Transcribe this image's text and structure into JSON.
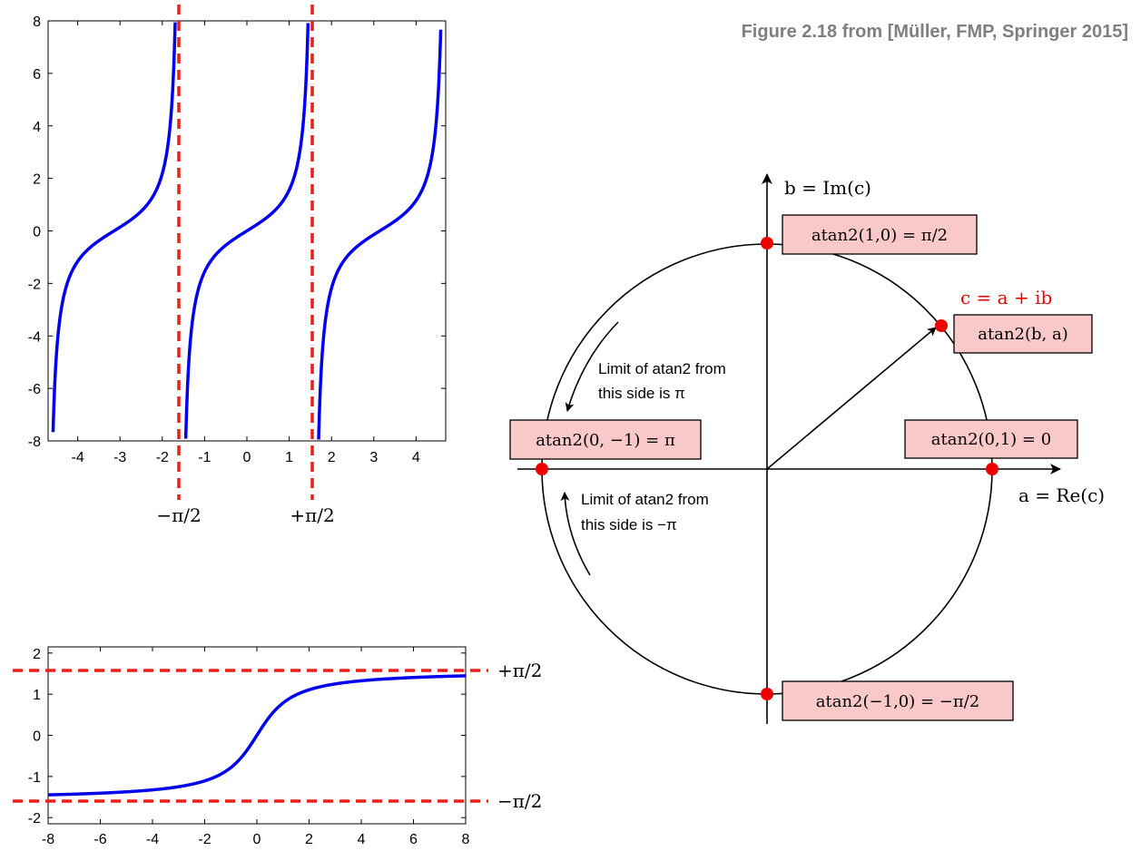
{
  "figure_credit": "Figure 2.18 from [Müller, FMP, Springer 2015]",
  "colors": {
    "curve": "#0000ee",
    "asymptote": "#e8201a",
    "box_fill": "#f9c8c8",
    "point": "#ee0000"
  },
  "tan_plot": {
    "xticks": [
      "-4",
      "-3",
      "-2",
      "-1",
      "0",
      "1",
      "2",
      "3",
      "4"
    ],
    "yticks": [
      "8",
      "6",
      "4",
      "2",
      "0",
      "-2",
      "-4",
      "-6",
      "-8"
    ],
    "asymptote_labels": [
      "−π/2",
      "+π/2"
    ]
  },
  "atan_plot": {
    "xticks": [
      "-8",
      "-6",
      "-4",
      "-2",
      "0",
      "2",
      "4",
      "6",
      "8"
    ],
    "yticks": [
      "2",
      "1",
      "0",
      "-1",
      "-2"
    ],
    "asymptote_labels": [
      "+π/2",
      "−π/2"
    ]
  },
  "circle_diagram": {
    "axis_im": "b = Im(c)",
    "axis_re": "a = Re(c)",
    "c_label": "c = a + ib",
    "box_top": "atan2(1,0) = π/2",
    "box_c": "atan2(b, a)",
    "box_left": "atan2(0, −1) = π",
    "box_right": "atan2(0,1) = 0",
    "box_bottom": "atan2(−1,0) = −π/2",
    "note_upper": [
      "Limit of atan2 from",
      "this side is π"
    ],
    "note_lower": [
      "Limit of atan2 from",
      "this side is −π"
    ]
  },
  "chart_data": [
    {
      "type": "line",
      "series": [
        {
          "function": "tan(x)",
          "values_sample": [
            [
              -4.5,
              -4.64
            ],
            [
              -3.14,
              0
            ],
            [
              -2,
              2.19
            ],
            [
              -1,
              -1.56
            ],
            [
              0,
              0
            ],
            [
              1,
              1.56
            ],
            [
              2,
              -2.19
            ],
            [
              3.14,
              0
            ],
            [
              4.5,
              4.64
            ]
          ]
        }
      ],
      "xlim": [
        -4.7,
        4.7
      ],
      "ylim": [
        -8,
        8
      ],
      "asymptotes_x": [
        "-π/2",
        "+π/2"
      ]
    },
    {
      "type": "line",
      "series": [
        {
          "function": "atan(x)",
          "values_sample": [
            [
              -8,
              -1.446
            ],
            [
              -4,
              -1.326
            ],
            [
              -2,
              -1.107
            ],
            [
              -1,
              -0.785
            ],
            [
              0,
              0
            ],
            [
              1,
              0.785
            ],
            [
              2,
              1.107
            ],
            [
              4,
              1.326
            ],
            [
              8,
              1.446
            ]
          ]
        }
      ],
      "xlim": [
        -8,
        8
      ],
      "ylim": [
        -2.1,
        2.1
      ],
      "asymptotes_y": [
        "+π/2",
        "-π/2"
      ]
    }
  ]
}
